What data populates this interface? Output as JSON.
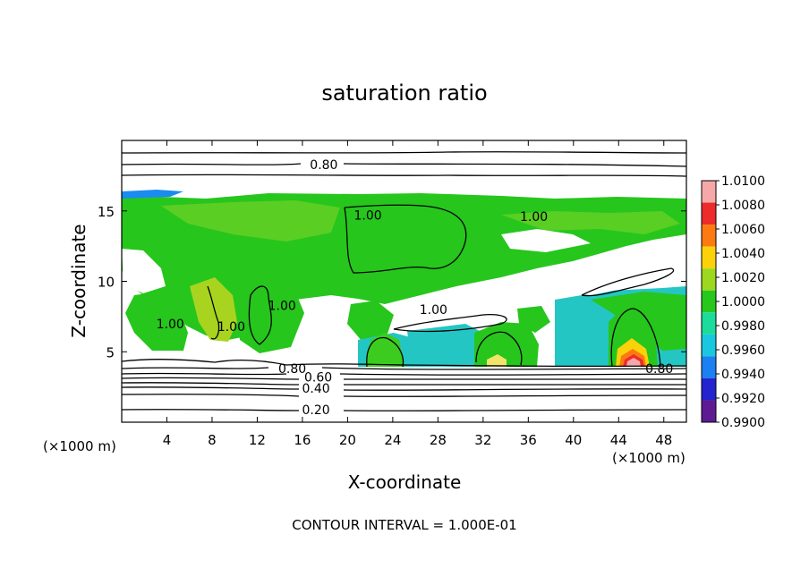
{
  "chart_data": {
    "type": "heatmap",
    "title": "saturation ratio",
    "xlabel": "X-coordinate",
    "ylabel": "Z-coordinate",
    "x_unit_left": "(×1000 m)",
    "x_unit_right": "(×1000 m)",
    "footer": "CONTOUR INTERVAL = 1.000E-01",
    "xlim": [
      0,
      50
    ],
    "ylim": [
      0,
      20
    ],
    "x_ticks": [
      4,
      8,
      12,
      16,
      20,
      24,
      28,
      32,
      36,
      40,
      44,
      48
    ],
    "y_ticks": [
      5,
      10,
      15
    ],
    "colorbar": {
      "min": 0.99,
      "max": 1.01,
      "labels": [
        "1.0100",
        "1.0080",
        "1.0060",
        "1.0040",
        "1.0020",
        "1.0000",
        "0.9980",
        "0.9960",
        "0.9940",
        "0.9920",
        "0.9900"
      ],
      "colors": [
        "#f6a8a8",
        "#ee2b2b",
        "#fd7a10",
        "#fbd20a",
        "#9bd81e",
        "#27c81c",
        "#1bdc9a",
        "#19c8e0",
        "#1c7ff2",
        "#2323cf",
        "#5e1a92"
      ]
    },
    "contour_labels": [
      {
        "text": "0.80",
        "x": 17.9,
        "y": 18.3
      },
      {
        "text": "1.00",
        "x": 21.8,
        "y": 14.7
      },
      {
        "text": "1.00",
        "x": 36.5,
        "y": 14.6
      },
      {
        "text": "1.00",
        "x": 14.2,
        "y": 8.3
      },
      {
        "text": "1.00",
        "x": 27.6,
        "y": 8.0
      },
      {
        "text": "1.00",
        "x": 4.3,
        "y": 7.0
      },
      {
        "text": "1.00",
        "x": 9.7,
        "y": 6.8
      },
      {
        "text": "0.80",
        "x": 15.1,
        "y": 3.8
      },
      {
        "text": "0.60",
        "x": 17.4,
        "y": 3.2
      },
      {
        "text": "0.40",
        "x": 17.2,
        "y": 2.4
      },
      {
        "text": "0.20",
        "x": 17.2,
        "y": 0.9
      },
      {
        "text": "0.80",
        "x": 47.6,
        "y": 3.8
      }
    ]
  }
}
